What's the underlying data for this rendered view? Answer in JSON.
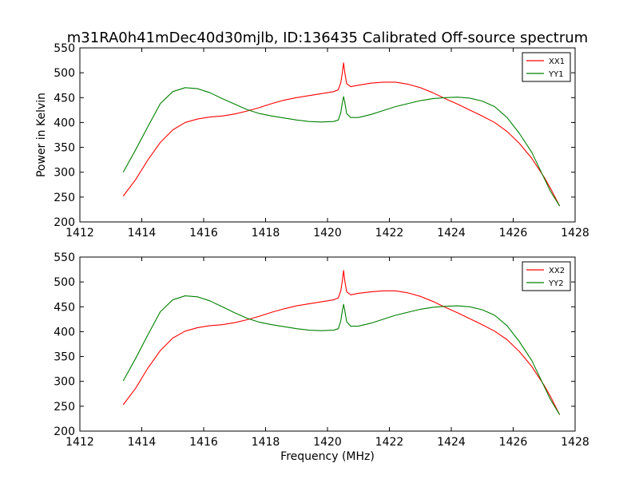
{
  "chart_data": {
    "type": "line",
    "title": "m31RA0h41mDec40d30mjlb, ID:136435 Calibrated Off-source spectrum",
    "xlabel": "Frequency (MHz)",
    "ylabel": "Power in Kelvin",
    "panels": [
      {
        "xlim": [
          1412,
          1428
        ],
        "ylim": [
          200,
          550
        ],
        "xticks": [
          1412,
          1414,
          1416,
          1418,
          1420,
          1422,
          1424,
          1426,
          1428
        ],
        "yticks": [
          200,
          250,
          300,
          350,
          400,
          450,
          500,
          550
        ],
        "legend": "top-right",
        "series": [
          {
            "name": "XX1",
            "color": "#ff0000",
            "points": [
              [
                1413.4,
                252
              ],
              [
                1413.8,
                285
              ],
              [
                1414.2,
                325
              ],
              [
                1414.6,
                360
              ],
              [
                1415.0,
                385
              ],
              [
                1415.4,
                400
              ],
              [
                1415.8,
                407
              ],
              [
                1416.2,
                411
              ],
              [
                1416.6,
                413
              ],
              [
                1417.0,
                417
              ],
              [
                1417.4,
                423
              ],
              [
                1417.8,
                430
              ],
              [
                1418.2,
                438
              ],
              [
                1418.6,
                445
              ],
              [
                1419.0,
                450
              ],
              [
                1419.4,
                454
              ],
              [
                1419.8,
                458
              ],
              [
                1420.2,
                462
              ],
              [
                1420.35,
                466
              ],
              [
                1420.43,
                480
              ],
              [
                1420.48,
                500
              ],
              [
                1420.52,
                520
              ],
              [
                1420.56,
                500
              ],
              [
                1420.62,
                478
              ],
              [
                1420.75,
                472
              ],
              [
                1421.0,
                475
              ],
              [
                1421.4,
                479
              ],
              [
                1421.8,
                481
              ],
              [
                1422.2,
                481
              ],
              [
                1422.6,
                477
              ],
              [
                1423.0,
                470
              ],
              [
                1423.4,
                460
              ],
              [
                1423.8,
                448
              ],
              [
                1424.2,
                437
              ],
              [
                1424.6,
                425
              ],
              [
                1425.0,
                413
              ],
              [
                1425.4,
                400
              ],
              [
                1425.8,
                382
              ],
              [
                1426.2,
                358
              ],
              [
                1426.6,
                328
              ],
              [
                1427.0,
                290
              ],
              [
                1427.2,
                268
              ],
              [
                1427.5,
                232
              ]
            ]
          },
          {
            "name": "YY1",
            "color": "#008000",
            "points": [
              [
                1413.4,
                300
              ],
              [
                1413.8,
                345
              ],
              [
                1414.2,
                392
              ],
              [
                1414.6,
                438
              ],
              [
                1415.0,
                462
              ],
              [
                1415.4,
                470
              ],
              [
                1415.8,
                468
              ],
              [
                1416.2,
                460
              ],
              [
                1416.6,
                448
              ],
              [
                1417.0,
                437
              ],
              [
                1417.4,
                426
              ],
              [
                1417.8,
                418
              ],
              [
                1418.2,
                413
              ],
              [
                1418.6,
                409
              ],
              [
                1419.0,
                405
              ],
              [
                1419.4,
                402
              ],
              [
                1419.8,
                401
              ],
              [
                1420.2,
                402
              ],
              [
                1420.35,
                405
              ],
              [
                1420.43,
                420
              ],
              [
                1420.48,
                440
              ],
              [
                1420.52,
                452
              ],
              [
                1420.56,
                440
              ],
              [
                1420.62,
                418
              ],
              [
                1420.75,
                410
              ],
              [
                1421.0,
                410
              ],
              [
                1421.4,
                416
              ],
              [
                1421.8,
                424
              ],
              [
                1422.2,
                432
              ],
              [
                1422.6,
                438
              ],
              [
                1423.0,
                444
              ],
              [
                1423.4,
                448
              ],
              [
                1423.8,
                450
              ],
              [
                1424.2,
                451
              ],
              [
                1424.6,
                449
              ],
              [
                1425.0,
                443
              ],
              [
                1425.4,
                432
              ],
              [
                1425.8,
                410
              ],
              [
                1426.2,
                378
              ],
              [
                1426.6,
                340
              ],
              [
                1427.0,
                288
              ],
              [
                1427.2,
                262
              ],
              [
                1427.5,
                232
              ]
            ]
          }
        ]
      },
      {
        "xlim": [
          1412,
          1428
        ],
        "ylim": [
          200,
          550
        ],
        "xticks": [
          1412,
          1414,
          1416,
          1418,
          1420,
          1422,
          1424,
          1426,
          1428
        ],
        "yticks": [
          200,
          250,
          300,
          350,
          400,
          450,
          500,
          550
        ],
        "legend": "top-right",
        "series": [
          {
            "name": "XX2",
            "color": "#ff0000",
            "points": [
              [
                1413.4,
                253
              ],
              [
                1413.8,
                286
              ],
              [
                1414.2,
                327
              ],
              [
                1414.6,
                362
              ],
              [
                1415.0,
                387
              ],
              [
                1415.4,
                401
              ],
              [
                1415.8,
                408
              ],
              [
                1416.2,
                412
              ],
              [
                1416.6,
                414
              ],
              [
                1417.0,
                418
              ],
              [
                1417.4,
                424
              ],
              [
                1417.8,
                431
              ],
              [
                1418.2,
                439
              ],
              [
                1418.6,
                446
              ],
              [
                1419.0,
                452
              ],
              [
                1419.4,
                456
              ],
              [
                1419.8,
                460
              ],
              [
                1420.2,
                464
              ],
              [
                1420.35,
                468
              ],
              [
                1420.43,
                482
              ],
              [
                1420.48,
                502
              ],
              [
                1420.52,
                523
              ],
              [
                1420.56,
                502
              ],
              [
                1420.62,
                480
              ],
              [
                1420.75,
                474
              ],
              [
                1421.0,
                477
              ],
              [
                1421.4,
                480
              ],
              [
                1421.8,
                482
              ],
              [
                1422.2,
                482
              ],
              [
                1422.6,
                478
              ],
              [
                1423.0,
                471
              ],
              [
                1423.4,
                461
              ],
              [
                1423.8,
                449
              ],
              [
                1424.2,
                438
              ],
              [
                1424.6,
                426
              ],
              [
                1425.0,
                414
              ],
              [
                1425.4,
                401
              ],
              [
                1425.8,
                384
              ],
              [
                1426.2,
                360
              ],
              [
                1426.6,
                330
              ],
              [
                1427.0,
                292
              ],
              [
                1427.2,
                270
              ],
              [
                1427.5,
                233
              ]
            ]
          },
          {
            "name": "YY2",
            "color": "#008000",
            "points": [
              [
                1413.4,
                301
              ],
              [
                1413.8,
                346
              ],
              [
                1414.2,
                394
              ],
              [
                1414.6,
                440
              ],
              [
                1415.0,
                464
              ],
              [
                1415.4,
                472
              ],
              [
                1415.8,
                470
              ],
              [
                1416.2,
                462
              ],
              [
                1416.6,
                450
              ],
              [
                1417.0,
                438
              ],
              [
                1417.4,
                427
              ],
              [
                1417.8,
                419
              ],
              [
                1418.2,
                414
              ],
              [
                1418.6,
                410
              ],
              [
                1419.0,
                406
              ],
              [
                1419.4,
                403
              ],
              [
                1419.8,
                402
              ],
              [
                1420.2,
                403
              ],
              [
                1420.35,
                406
              ],
              [
                1420.43,
                422
              ],
              [
                1420.48,
                442
              ],
              [
                1420.52,
                455
              ],
              [
                1420.56,
                442
              ],
              [
                1420.62,
                420
              ],
              [
                1420.75,
                411
              ],
              [
                1421.0,
                411
              ],
              [
                1421.4,
                417
              ],
              [
                1421.8,
                425
              ],
              [
                1422.2,
                433
              ],
              [
                1422.6,
                439
              ],
              [
                1423.0,
                445
              ],
              [
                1423.4,
                449
              ],
              [
                1423.8,
                451
              ],
              [
                1424.2,
                452
              ],
              [
                1424.6,
                450
              ],
              [
                1425.0,
                444
              ],
              [
                1425.4,
                433
              ],
              [
                1425.8,
                412
              ],
              [
                1426.2,
                380
              ],
              [
                1426.6,
                342
              ],
              [
                1427.0,
                290
              ],
              [
                1427.2,
                264
              ],
              [
                1427.5,
                233
              ]
            ]
          }
        ]
      }
    ]
  }
}
